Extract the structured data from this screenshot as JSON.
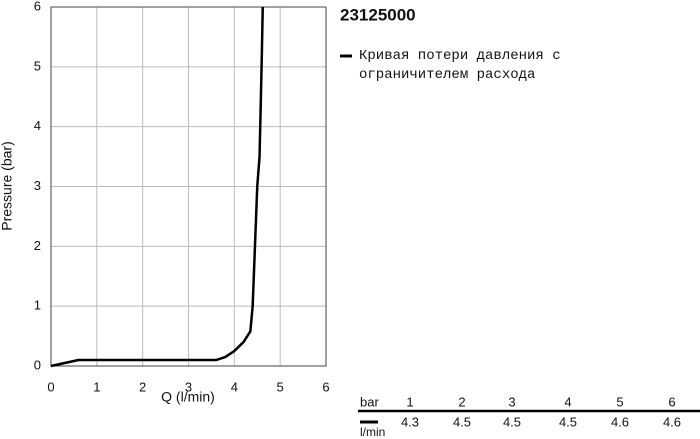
{
  "chart_data": {
    "type": "line",
    "title": "23125000",
    "x_label": "Q (l/min)",
    "y_label": "Pressure (bar)",
    "series": [
      {
        "name": "Кривая потери давления с ограничителем расхода",
        "color": "#000000",
        "x": [
          0,
          0.3,
          0.6,
          1,
          2,
          3,
          3.6,
          3.8,
          4,
          4.2,
          4.35,
          4.4,
          4.45,
          4.5,
          4.55,
          4.58,
          4.6,
          4.62
        ],
        "values": [
          0,
          0.05,
          0.1,
          0.1,
          0.1,
          0.1,
          0.1,
          0.15,
          0.25,
          0.4,
          0.58,
          1,
          2,
          3,
          3.5,
          4.5,
          5.2,
          6
        ]
      }
    ],
    "xlim": [
      0,
      6
    ],
    "ylim": [
      0,
      6
    ],
    "xticks": [
      0,
      1,
      2,
      3,
      4,
      5,
      6
    ],
    "yticks": [
      0,
      1,
      2,
      3,
      4,
      5,
      6
    ],
    "grid": true
  },
  "table": {
    "pressure_label": "bar",
    "flow_label": "l/min",
    "pressures": [
      1,
      2,
      3,
      4,
      5,
      6
    ],
    "flows": [
      4.3,
      4.5,
      4.5,
      4.5,
      4.6,
      4.6
    ]
  }
}
